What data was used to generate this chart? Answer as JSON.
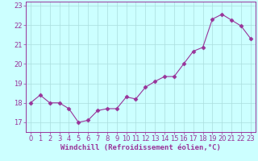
{
  "x": [
    0,
    1,
    2,
    3,
    4,
    5,
    6,
    7,
    8,
    9,
    10,
    11,
    12,
    13,
    14,
    15,
    16,
    17,
    18,
    19,
    20,
    21,
    22,
    23
  ],
  "y": [
    18.0,
    18.4,
    18.0,
    18.0,
    17.7,
    17.0,
    17.1,
    17.6,
    17.7,
    17.7,
    18.3,
    18.2,
    18.8,
    19.1,
    19.35,
    19.35,
    20.0,
    20.65,
    20.85,
    22.3,
    22.55,
    22.25,
    21.95,
    21.3
  ],
  "line_color": "#993399",
  "marker": "D",
  "marker_size": 2.5,
  "bg_color": "#ccffff",
  "grid_color": "#aadddd",
  "xlabel": "Windchill (Refroidissement éolien,°C)",
  "xlabel_fontsize": 6.5,
  "tick_fontsize": 6.0,
  "ylim": [
    16.5,
    23.2
  ],
  "yticks": [
    17,
    18,
    19,
    20,
    21,
    22,
    23
  ],
  "xticks": [
    0,
    1,
    2,
    3,
    4,
    5,
    6,
    7,
    8,
    9,
    10,
    11,
    12,
    13,
    14,
    15,
    16,
    17,
    18,
    19,
    20,
    21,
    22,
    23
  ]
}
